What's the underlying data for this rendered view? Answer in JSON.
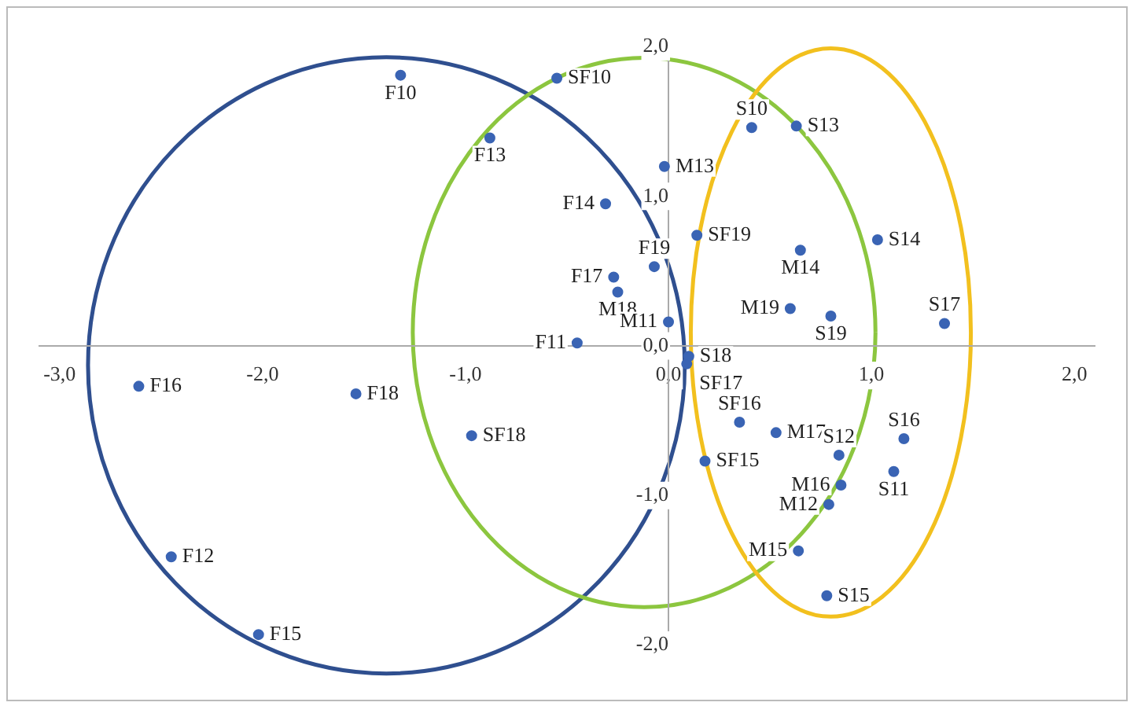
{
  "chart_data": {
    "type": "scatter",
    "color": "#3a64b4",
    "marker": "circle",
    "grid": false,
    "legend": false,
    "xlim": [
      -3.1,
      2.1
    ],
    "ylim": [
      -2.05,
      2.05
    ],
    "xticks": [
      {
        "value": -3,
        "label": "-3,0"
      },
      {
        "value": -2,
        "label": "-2,0"
      },
      {
        "value": -1,
        "label": "-1,0"
      },
      {
        "value": 0,
        "label": "0,0"
      },
      {
        "value": 1,
        "label": "1,0"
      },
      {
        "value": 2,
        "label": "2,0"
      }
    ],
    "yticks": [
      {
        "value": -2,
        "label": "-2,0"
      },
      {
        "value": -1,
        "label": "-1,0"
      },
      {
        "value": 0,
        "label": "0,0"
      },
      {
        "value": 1,
        "label": "1,0"
      },
      {
        "value": 2,
        "label": "2,0"
      }
    ],
    "x": [
      -1.32,
      -0.55,
      -0.88,
      -0.02,
      0.41,
      0.63,
      -0.31,
      0.14,
      0.65,
      1.03,
      -0.07,
      -0.27,
      -0.25,
      0.6,
      0.8,
      1.36,
      -0.45,
      0.0,
      0.1,
      0.09,
      -2.61,
      -1.54,
      -0.97,
      0.35,
      0.53,
      0.18,
      0.84,
      1.16,
      1.11,
      0.85,
      0.79,
      0.64,
      0.78,
      -2.45,
      -2.02
    ],
    "values": [
      1.81,
      1.79,
      1.39,
      1.2,
      1.46,
      1.47,
      0.95,
      0.74,
      0.64,
      0.71,
      0.53,
      0.46,
      0.36,
      0.25,
      0.2,
      0.15,
      0.02,
      0.16,
      -0.07,
      -0.12,
      -0.27,
      -0.32,
      -0.6,
      -0.51,
      -0.58,
      -0.77,
      -0.73,
      -0.62,
      -0.84,
      -0.93,
      -1.06,
      -1.37,
      -1.67,
      -1.41,
      -1.93
    ],
    "value_labels": [
      "F10",
      "SF10",
      "F13",
      "M13",
      "S10",
      "S13",
      "F14",
      "SF19",
      "M14",
      "S14",
      "F19",
      "F17",
      "M18",
      "M19",
      "S19",
      "S17",
      "F11",
      "M11",
      "S18",
      "SF17",
      "F16",
      "F18",
      "SF18",
      "SF16",
      "M17",
      "SF15",
      "S12",
      "S16",
      "S11",
      "M16",
      "M12",
      "M15",
      "S15",
      "F12",
      "F15"
    ]
  }
}
